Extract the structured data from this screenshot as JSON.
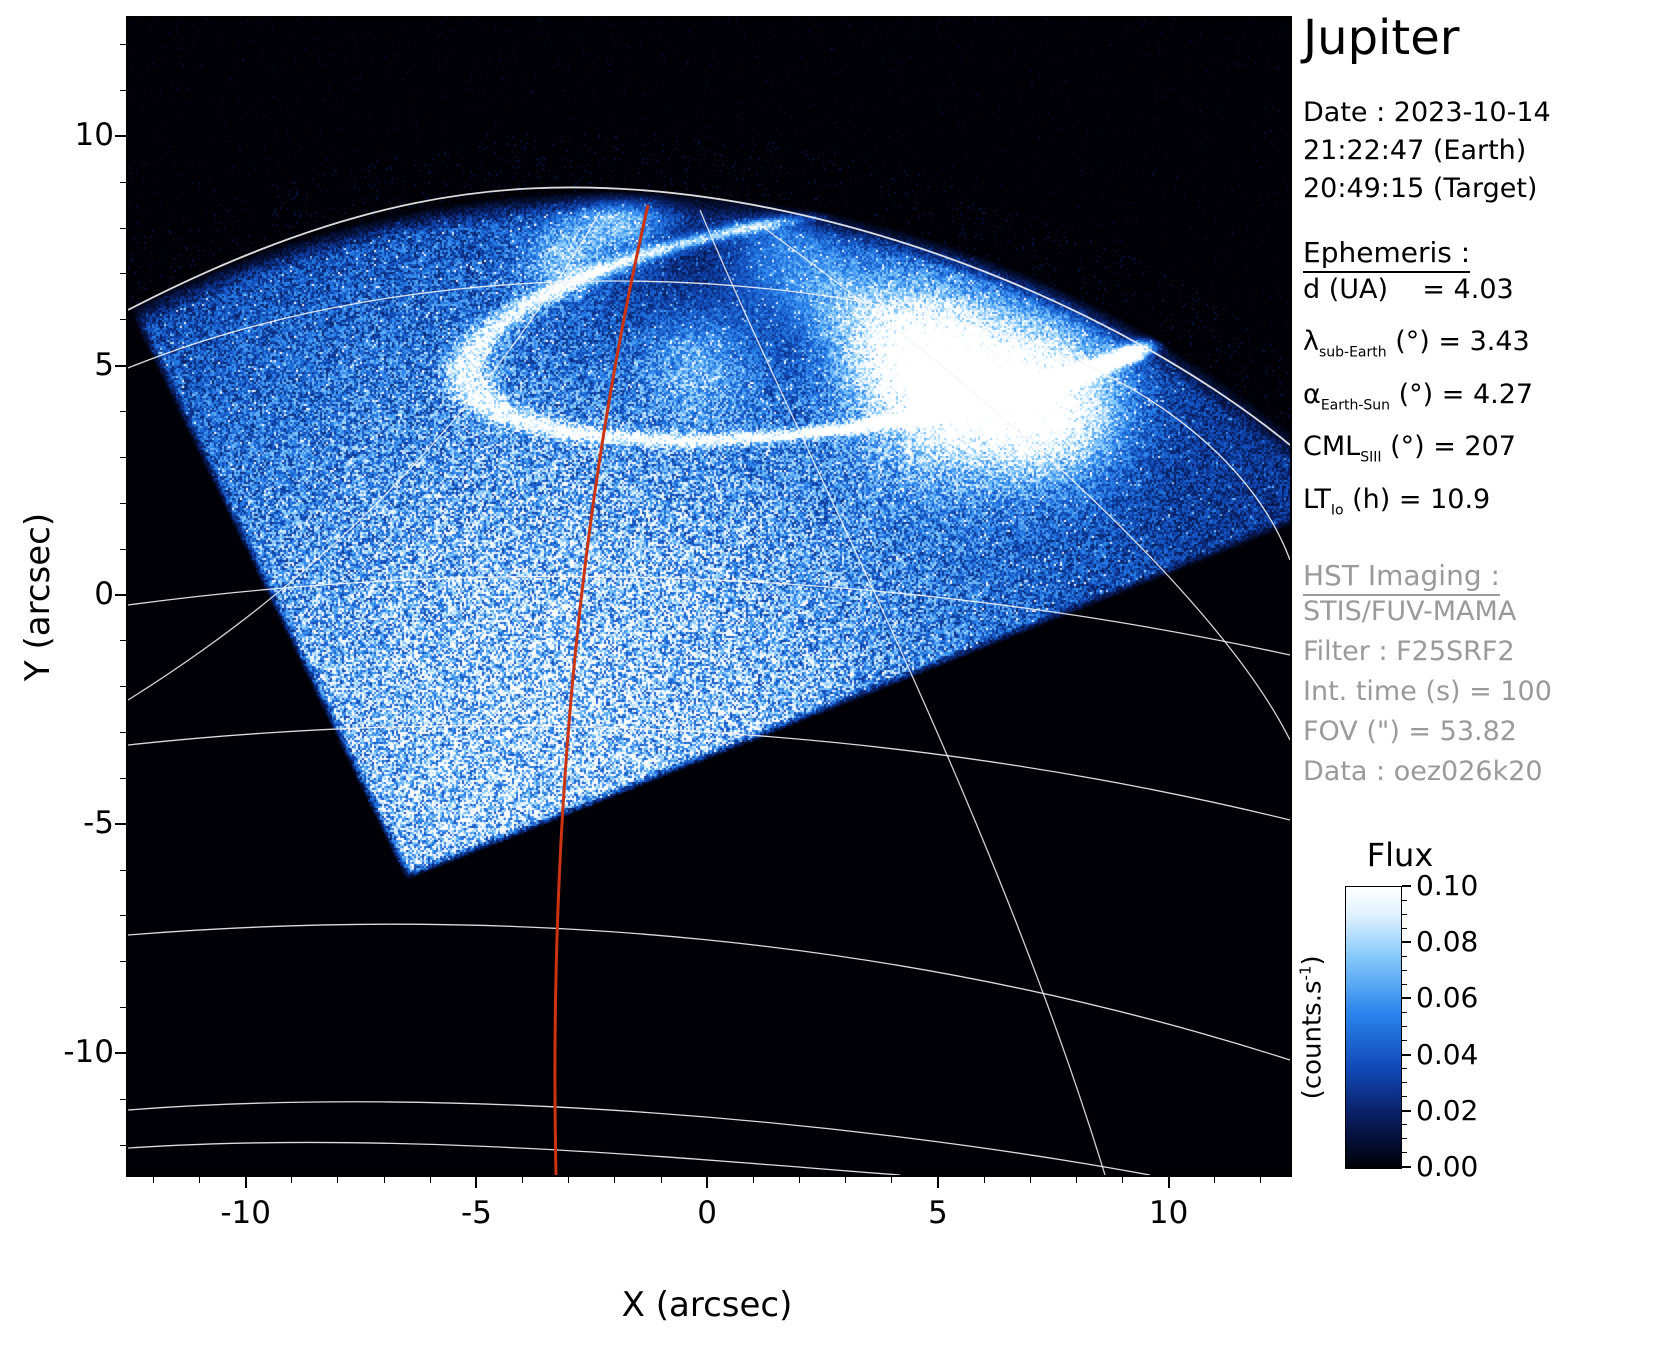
{
  "panel": {
    "title": "Jupiter",
    "date_line": "Date : 2023-10-14",
    "time_earth": "21:22:47 (Earth)",
    "time_target": "20:49:15 (Target)",
    "ephemeris": {
      "heading": "Ephemeris :",
      "lines": [
        {
          "symbol": "d",
          "sub": "",
          "rest": " (UA)    = 4.03"
        },
        {
          "symbol": "λ",
          "sub": "sub-Earth",
          "rest": " (°) = 3.43"
        },
        {
          "symbol": "α",
          "sub": "Earth-Sun",
          "rest": " (°) = 4.27"
        },
        {
          "symbol": "CML",
          "sub": "SIII",
          "rest": " (°) = 207"
        },
        {
          "symbol": "LT",
          "sub": "Io",
          "rest": " (h) = 10.9"
        }
      ]
    },
    "hst": {
      "heading": "HST Imaging :",
      "lines": [
        "STIS/FUV-MAMA",
        "Filter : F25SRF2",
        "Int. time (s) = 100",
        "FOV (\") = 53.82",
        "Data : oez026k20"
      ]
    }
  },
  "chart_data": {
    "type": "heatmap",
    "title": "Jupiter",
    "xlabel": "X (arcsec)",
    "ylabel": "Y (arcsec)",
    "xlim": [
      -12.55,
      12.63
    ],
    "ylim": [
      -12.65,
      12.58
    ],
    "x_ticks": [
      -10,
      -5,
      0,
      5,
      10
    ],
    "y_ticks": [
      10,
      5,
      0,
      -5,
      -10
    ],
    "minor_tick_step": 1,
    "grid": false,
    "colorbar": {
      "title": "Flux",
      "unit_pre": "(counts.s",
      "unit_sup": "-1",
      "unit_post": ")",
      "tick_labels": [
        "0.10",
        "0.08",
        "0.06",
        "0.04",
        "0.02",
        "0.00"
      ],
      "range": [
        0,
        0.1
      ],
      "colormap_stops": [
        [
          "0",
          "#000006"
        ],
        [
          "0.18",
          "#091d5e"
        ],
        [
          "0.35",
          "#1048b6"
        ],
        [
          "0.55",
          "#2a84ec"
        ],
        [
          "0.75",
          "#85c9fa"
        ],
        [
          "0.9",
          "#dff1ff"
        ],
        [
          "1",
          "#ffffff"
        ]
      ]
    },
    "overlays": {
      "graticule_color": "#f4f4f4",
      "cml_color": "#cc3311"
    },
    "image_description": "Noisy far-UV counts image of Jupiter (blue colormap) inside a rotated square STIS aperture; bright northern auroral oval near the pole (brightest on its right / lower-right side); black sky above the limb and outside the aperture; white planetographic graticule (latitude arcs and meridians); red line marks the central meridian longitude."
  }
}
